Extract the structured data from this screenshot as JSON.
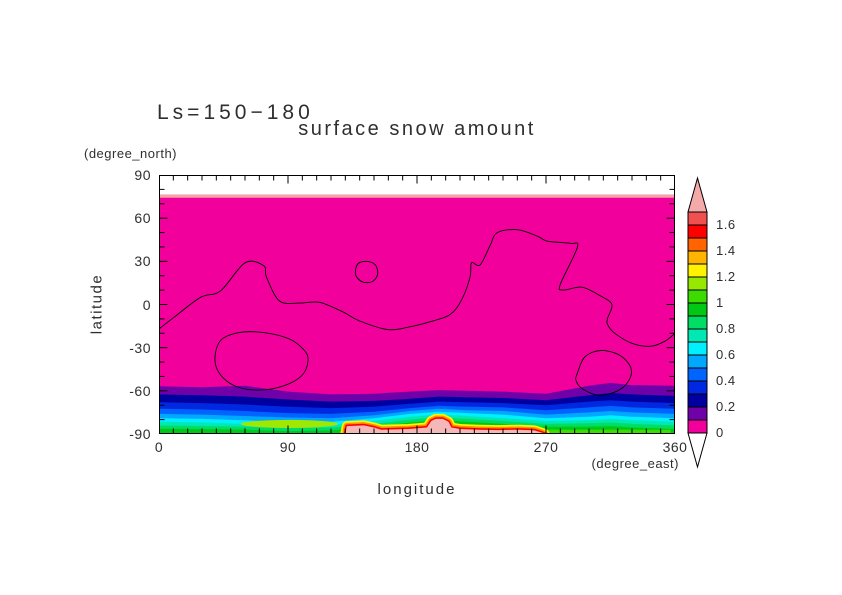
{
  "chart_data": {
    "type": "filled_contour_map",
    "title": "surface snow amount",
    "subtitle": "Ls=150−180",
    "xlabel": "longitude",
    "x_unit": "(degree_east)",
    "ylabel": "latitude",
    "y_unit": "(degree_north)",
    "x_range": [
      0,
      360
    ],
    "y_range": [
      -90,
      90
    ],
    "x_major_ticks": [
      0,
      90,
      180,
      270,
      360
    ],
    "x_tick_labels": [
      "0",
      "90",
      "180",
      "270",
      "360"
    ],
    "y_major_ticks": [
      90,
      60,
      30,
      0,
      -30,
      -60,
      -90
    ],
    "y_tick_labels": [
      "90",
      "60",
      "30",
      "0",
      "-30",
      "-60",
      "-90"
    ],
    "minor_tick_step_deg": 10,
    "colorbar_tick_labels": [
      "1.6",
      "1.4",
      "1.2",
      "1",
      "0.8",
      "0.6",
      "0.4",
      "0.2",
      "0"
    ],
    "colorbar_tick_values": [
      1.6,
      1.4,
      1.2,
      1.0,
      0.8,
      0.6,
      0.4,
      0.2,
      0
    ],
    "levels": {
      "min": 0,
      "max": 1.7,
      "step": 0.1
    },
    "palette": [
      "#f2009b",
      "#7000a8",
      "#0000a0",
      "#0028e0",
      "#0064ff",
      "#00a8ff",
      "#00f0ff",
      "#00e8b4",
      "#00dc64",
      "#00c814",
      "#3cdc00",
      "#96e800",
      "#fff200",
      "#ffb400",
      "#ff6400",
      "#ff0000",
      "#f05050"
    ],
    "overflow_color": "#f5aaaa",
    "underflow_color": "#ffffff",
    "background_value_color": "#f2009b",
    "no_data_band": {
      "lat_from": 76.3,
      "lat_to": 90,
      "color": "#ffffff",
      "edge_color": "#f4a6a6",
      "edge_lat_to": 74.2
    },
    "band_lons": [
      0,
      30,
      60,
      90,
      120,
      150,
      175,
      195,
      215,
      240,
      270,
      300,
      315,
      330,
      360
    ],
    "band_boundaries": [
      {
        "level": 0.1,
        "color": "#7000a8",
        "lats": [
          -56.8,
          -57.5,
          -56.5,
          -60.5,
          -62.5,
          -62.0,
          -60.5,
          -59.5,
          -60.0,
          -60.5,
          -62.0,
          -56.5,
          -54.5,
          -56.0,
          -56.5
        ]
      },
      {
        "level": 0.2,
        "color": "#0000a0",
        "lats": [
          -62.5,
          -63.0,
          -64.0,
          -66.0,
          -67.5,
          -67.0,
          -65.5,
          -64.0,
          -64.5,
          -65.0,
          -66.5,
          -63.0,
          -61.5,
          -62.5,
          -63.5
        ]
      },
      {
        "level": 0.3,
        "color": "#0028e0",
        "lats": [
          -68.0,
          -68.5,
          -69.5,
          -71.0,
          -72.0,
          -71.0,
          -69.0,
          -67.5,
          -68.0,
          -68.5,
          -70.0,
          -67.5,
          -66.5,
          -67.5,
          -68.5
        ]
      },
      {
        "level": 0.4,
        "color": "#0064ff",
        "lats": [
          -72.5,
          -73.0,
          -74.0,
          -75.5,
          -76.0,
          -74.5,
          -72.0,
          -70.5,
          -71.0,
          -71.5,
          -73.5,
          -71.5,
          -70.5,
          -71.5,
          -72.5
        ]
      },
      {
        "level": 0.5,
        "color": "#00a8ff",
        "lats": [
          -76.0,
          -76.5,
          -77.5,
          -78.5,
          -79.0,
          -77.0,
          -74.0,
          -72.5,
          -73.5,
          -74.0,
          -76.5,
          -75.0,
          -74.0,
          -75.0,
          -76.0
        ]
      },
      {
        "level": 0.6,
        "color": "#00f0ff",
        "lats": [
          -79.0,
          -79.5,
          -80.5,
          -81.5,
          -81.5,
          -79.0,
          -76.0,
          -74.5,
          -75.5,
          -76.5,
          -79.0,
          -78.0,
          -77.0,
          -78.0,
          -79.0
        ]
      },
      {
        "level": 0.7,
        "color": "#00e8b4",
        "lats": [
          -81.5,
          -82.0,
          -83.0,
          -84.0,
          -83.5,
          -81.0,
          -78.0,
          -76.5,
          -77.5,
          -79.0,
          -81.0,
          -80.5,
          -79.5,
          -80.5,
          -81.5
        ]
      },
      {
        "level": 0.8,
        "color": "#00dc64",
        "lats": [
          -84.0,
          -84.5,
          -85.0,
          -86.0,
          -85.5,
          -83.0,
          -80.0,
          -78.5,
          -79.5,
          -81.0,
          -83.0,
          -82.5,
          -82.0,
          -83.0,
          -84.0
        ]
      },
      {
        "level": 0.9,
        "color": "#00c814",
        "lats": [
          -86.3,
          -86.6,
          -87.0,
          -88.0,
          -87.5,
          -85.0,
          -82.0,
          -80.5,
          -81.5,
          -83.0,
          -85.0,
          -85.0,
          -84.5,
          -85.5,
          -86.5
        ]
      }
    ],
    "features": {
      "chartreuse_patch": {
        "color": "#a0e800",
        "center_lon": 91,
        "center_lat": -83,
        "rx_deg": 34,
        "ry_deg": 2.8
      },
      "bright_green_strip": {
        "color": "#3cdc00",
        "lon_from": 262,
        "lon_to": 357,
        "lat_from": -87,
        "lat_to": -90
      },
      "polar_cap": {
        "fill": "#f5b8b8",
        "fringes": [
          {
            "color": "#fff200",
            "width": 10
          },
          {
            "color": "#ff9000",
            "width": 6.5
          },
          {
            "color": "#ff0000",
            "width": 3.2
          }
        ],
        "points": [
          [
            130,
            -90
          ],
          [
            131,
            -84.5
          ],
          [
            143,
            -84
          ],
          [
            150,
            -85.5
          ],
          [
            155,
            -87
          ],
          [
            174,
            -86.5
          ],
          [
            187,
            -85.5
          ],
          [
            190,
            -81
          ],
          [
            193,
            -79.5
          ],
          [
            198,
            -79.5
          ],
          [
            202,
            -81.5
          ],
          [
            204,
            -85.5
          ],
          [
            210,
            -86.5
          ],
          [
            223,
            -87
          ],
          [
            237,
            -87.3
          ],
          [
            251,
            -87
          ],
          [
            262,
            -87.5
          ],
          [
            267,
            -89
          ],
          [
            269,
            -90
          ]
        ]
      }
    },
    "overlay_contours": {
      "color": "#000000",
      "main": [
        [
          0,
          -17
        ],
        [
          11,
          -8.5
        ],
        [
          29,
          5
        ],
        [
          43,
          9.5
        ],
        [
          60,
          29
        ],
        [
          73,
          27
        ],
        [
          75,
          19
        ],
        [
          84,
          2.5
        ],
        [
          98,
          1
        ],
        [
          112,
          1.5
        ],
        [
          128,
          -5
        ],
        [
          140,
          -11.5
        ],
        [
          160,
          -17.5
        ],
        [
          175,
          -15.5
        ],
        [
          189,
          -12
        ],
        [
          203,
          -7
        ],
        [
          211,
          3
        ],
        [
          217,
          19
        ],
        [
          218,
          29
        ],
        [
          224,
          27.5
        ],
        [
          231,
          41
        ],
        [
          236,
          50
        ],
        [
          250,
          52
        ],
        [
          264,
          47.5
        ],
        [
          271,
          44
        ],
        [
          287,
          42.5
        ],
        [
          292,
          40
        ],
        [
          280,
          14
        ],
        [
          282,
          10
        ],
        [
          295,
          12
        ],
        [
          308,
          6
        ],
        [
          316,
          0
        ],
        [
          313,
          -9.5
        ],
        [
          313,
          -14
        ],
        [
          318,
          -20
        ],
        [
          330,
          -27
        ],
        [
          343,
          -29
        ],
        [
          353,
          -25.5
        ],
        [
          360,
          -20
        ]
      ],
      "small_loop": [
        [
          137,
          23
        ],
        [
          139,
          28.5
        ],
        [
          145,
          30
        ],
        [
          151,
          27.5
        ],
        [
          152.5,
          21
        ],
        [
          149,
          16
        ],
        [
          142.5,
          15.5
        ],
        [
          138,
          19
        ]
      ],
      "southwest_blob": [
        [
          39,
          -38
        ],
        [
          43,
          -25
        ],
        [
          56,
          -19.5
        ],
        [
          73,
          -19.5
        ],
        [
          91,
          -24
        ],
        [
          101,
          -31.5
        ],
        [
          104,
          -38.5
        ],
        [
          100,
          -49
        ],
        [
          87,
          -56.5
        ],
        [
          70,
          -59.5
        ],
        [
          54,
          -57
        ],
        [
          43,
          -49
        ]
      ],
      "southeast_blob": [
        [
          292,
          -47.5
        ],
        [
          297,
          -36.5
        ],
        [
          308,
          -32
        ],
        [
          321,
          -35
        ],
        [
          329,
          -43.5
        ],
        [
          328,
          -52.5
        ],
        [
          320,
          -60
        ],
        [
          307,
          -63
        ],
        [
          296,
          -59
        ],
        [
          291,
          -53
        ]
      ]
    }
  }
}
